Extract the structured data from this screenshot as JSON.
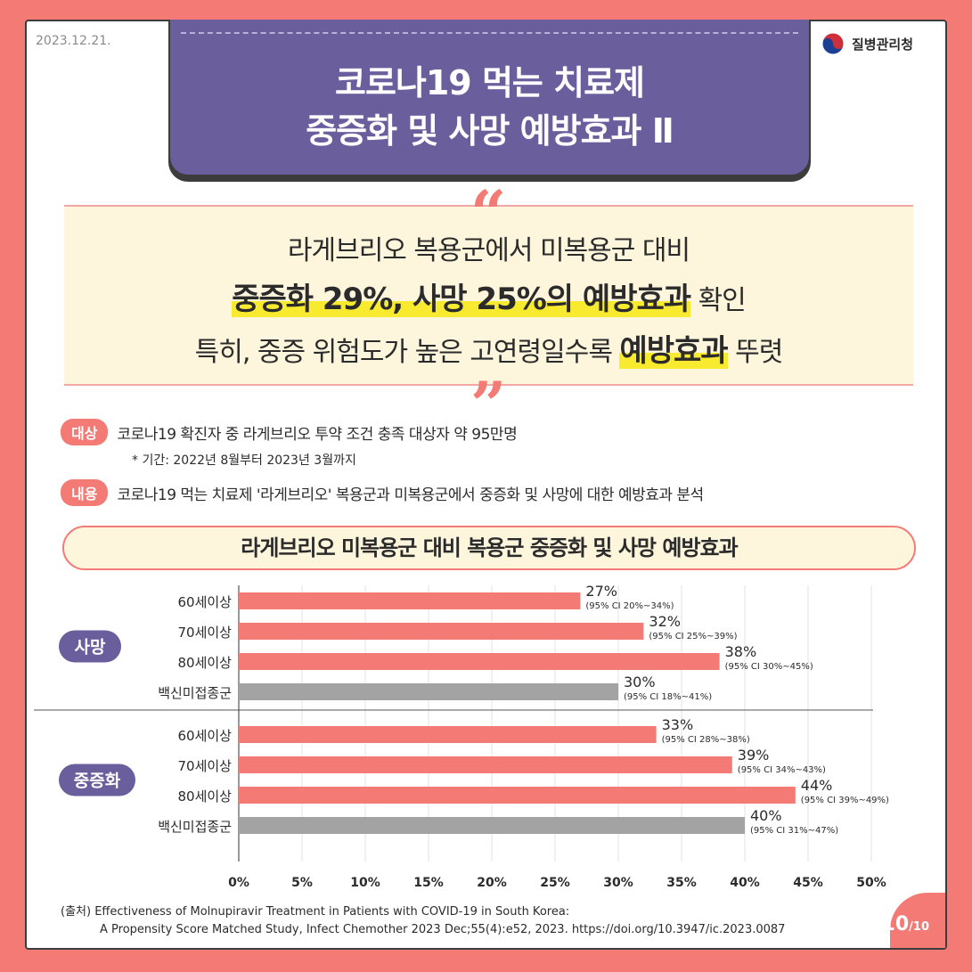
{
  "date": "2023.12.21.",
  "agency": "질병관리청",
  "title": {
    "line1": "코로나19 먹는 치료제",
    "line2": "중증화 및 사망 예방효과 Ⅱ"
  },
  "quote": {
    "line1": "라게브리오 복용군에서 미복용군 대비",
    "line2_highlight": "중증화 29%, 사망 25%의 예방효과",
    "line2_rest": " 확인",
    "line3_pre": "특히, 중증 위험도가 높은 고연령일수록 ",
    "line3_highlight": "예방효과",
    "line3_rest": " 뚜렷"
  },
  "info": {
    "target_label": "대상",
    "target_text": "코로나19 확진자 중 라게브리오 투약 조건 충족 대상자 약 95만명",
    "period_note": "* 기간: 2022년 8월부터 2023년 3월까지",
    "content_label": "내용",
    "content_text": "코로나19 먹는 치료제 '라게브리오' 복용군과 미복용군에서 중증화 및 사망에 대한 예방효과 분석"
  },
  "chart_title": "라게브리오 미복용군 대비 복용군 중증화 및 사망 예방효과",
  "chart_data": {
    "type": "bar",
    "orientation": "horizontal",
    "title": "라게브리오 미복용군 대비 복용군 중증화 및 사망 예방효과",
    "xlim": [
      0,
      50
    ],
    "xticks": [
      "0%",
      "5%",
      "10%",
      "15%",
      "20%",
      "25%",
      "30%",
      "35%",
      "40%",
      "45%",
      "50%"
    ],
    "grid": true,
    "groups": [
      {
        "name": "사망",
        "bars": [
          {
            "category": "60세이상",
            "value": 27,
            "label": "27%",
            "ci": "(95% CI 20%~34%)",
            "color": "#f47a76"
          },
          {
            "category": "70세이상",
            "value": 32,
            "label": "32%",
            "ci": "(95% CI 25%~39%)",
            "color": "#f47a76"
          },
          {
            "category": "80세이상",
            "value": 38,
            "label": "38%",
            "ci": "(95% CI 30%~45%)",
            "color": "#f47a76"
          },
          {
            "category": "백신미접종군",
            "value": 30,
            "label": "30%",
            "ci": "(95% CI 18%~41%)",
            "color": "#a3a3a3"
          }
        ]
      },
      {
        "name": "중증화",
        "bars": [
          {
            "category": "60세이상",
            "value": 33,
            "label": "33%",
            "ci": "(95% CI 28%~38%)",
            "color": "#f47a76"
          },
          {
            "category": "70세이상",
            "value": 39,
            "label": "39%",
            "ci": "(95% CI 34%~43%)",
            "color": "#f47a76"
          },
          {
            "category": "80세이상",
            "value": 44,
            "label": "44%",
            "ci": "(95% CI 39%~49%)",
            "color": "#f47a76"
          },
          {
            "category": "백신미접종군",
            "value": 40,
            "label": "40%",
            "ci": "(95% CI 31%~47%)",
            "color": "#a3a3a3"
          }
        ]
      }
    ]
  },
  "source": {
    "line1": "(출처) Effectiveness of Molnupiravir Treatment in Patients with COVID-19 in South Korea:",
    "line2": "A Propensity Score Matched Study, Infect Chemother 2023 Dec;55(4):e52, 2023. https://doi.org/10.3947/ic.2023.0087"
  },
  "page": {
    "current": "10",
    "total": "/10"
  },
  "colors": {
    "accent": "#f47a76",
    "purple": "#6b5e9d",
    "gray_bar": "#a3a3a3",
    "highlight": "#f8ea2e"
  },
  "icons": {
    "logo": "taegeuk-icon",
    "open_quote": "open-quote-icon",
    "close_quote": "close-quote-icon"
  }
}
